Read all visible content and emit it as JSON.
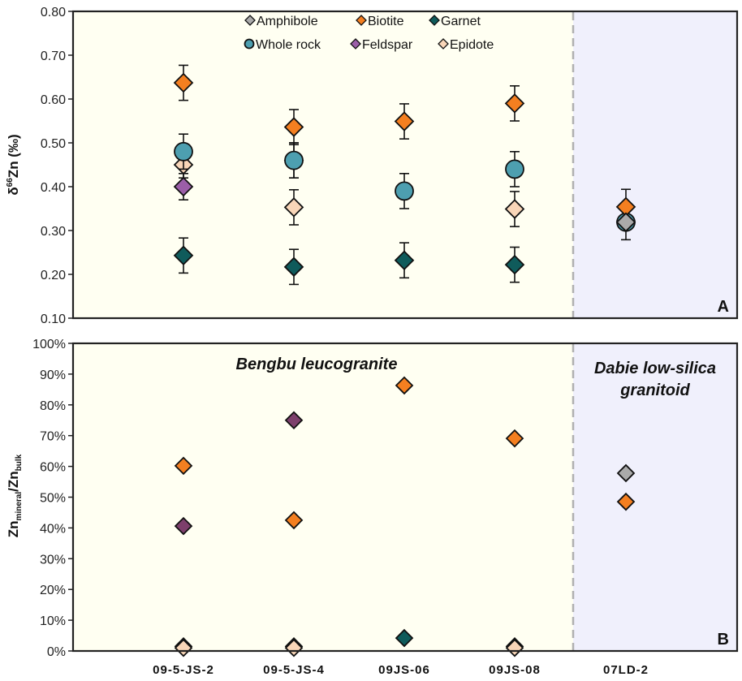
{
  "chart_data": [
    {
      "panel": "A",
      "type": "scatter",
      "title": "",
      "xlabel": "",
      "ylabel": "δ66Zn (‰)",
      "ylabel_parts": {
        "delta": "δ",
        "sup": "66",
        "main": "Zn (‰)"
      },
      "ylim": [
        0.1,
        0.8
      ],
      "yticks": [
        "0.10",
        "0.20",
        "0.30",
        "0.40",
        "0.50",
        "0.60",
        "0.70",
        "0.80"
      ],
      "ytick_values": [
        0.1,
        0.2,
        0.3,
        0.4,
        0.5,
        0.6,
        0.7,
        0.8
      ],
      "categories": [
        "09-5-JS-2",
        "09-5-JS-4",
        "09JS-06",
        "09JS-08",
        "07LD-2"
      ],
      "grid": false,
      "legend_position": "top-center",
      "series": [
        {
          "name": "Garnet",
          "marker": "diamond",
          "color": "#0f5b5b",
          "values": [
            0.243,
            0.217,
            0.232,
            0.222,
            null
          ],
          "errors": [
            0.04,
            0.04,
            0.04,
            0.04,
            null
          ]
        },
        {
          "name": "Epidote",
          "marker": "diamond",
          "color": "#f9d6b8",
          "values": [
            0.45,
            null,
            null,
            0.349,
            null
          ],
          "errors": [
            0.03,
            null,
            null,
            0.04,
            null
          ]
        },
        {
          "name": "Feldspar",
          "marker": "diamond",
          "color": "#9b5ea8",
          "values": [
            0.4,
            0.46,
            null,
            null,
            null
          ],
          "errors": [
            0.03,
            0.04,
            null,
            null,
            null
          ]
        },
        {
          "name": "Whole rock",
          "marker": "circle",
          "color": "#4d9fb0",
          "values": [
            0.48,
            0.46,
            0.39,
            0.44,
            0.319
          ],
          "errors": [
            0.04,
            0.04,
            0.04,
            0.04,
            0.04
          ]
        },
        {
          "name": "Epidote2",
          "marker": "diamond",
          "color": "#f9d6b8",
          "values": [
            null,
            0.353,
            null,
            null,
            null
          ],
          "errors": [
            null,
            0.04,
            null,
            null,
            null
          ]
        },
        {
          "name": "Biotite",
          "marker": "diamond",
          "color": "#f47f20",
          "values": [
            0.637,
            0.536,
            0.549,
            0.59,
            0.354
          ],
          "errors": [
            0.04,
            0.04,
            0.04,
            0.04,
            0.04
          ]
        },
        {
          "name": "Amphibole",
          "marker": "diamond",
          "color": "#aaaaaa",
          "values": [
            null,
            null,
            null,
            null,
            0.319
          ],
          "errors": [
            null,
            null,
            null,
            null,
            null
          ]
        }
      ],
      "legend": [
        {
          "name": "Amphibole",
          "marker": "diamond",
          "color": "#aaaaaa"
        },
        {
          "name": "Biotite",
          "marker": "diamond",
          "color": "#f47f20"
        },
        {
          "name": "Garnet",
          "marker": "diamond",
          "color": "#0f5b5b"
        },
        {
          "name": "Whole rock",
          "marker": "circle",
          "color": "#4d9fb0"
        },
        {
          "name": "Feldspar",
          "marker": "diamond",
          "color": "#9b5ea8"
        },
        {
          "name": "Epidote",
          "marker": "diamond",
          "color": "#f9d6b8"
        }
      ],
      "annotations": {
        "panel_letter": "A"
      }
    },
    {
      "panel": "B",
      "type": "scatter",
      "title": "",
      "xlabel": "",
      "ylabel": "Znmineral/Znbulk",
      "ylabel_parts": {
        "a": "Zn",
        "a_sub": "mineral",
        "sep": "/",
        "b": "Zn",
        "b_sub": "bulk"
      },
      "ylim": [
        0,
        100
      ],
      "yticks": [
        "0%",
        "10%",
        "20%",
        "30%",
        "40%",
        "50%",
        "60%",
        "70%",
        "80%",
        "90%",
        "100%"
      ],
      "ytick_values": [
        0,
        10,
        20,
        30,
        40,
        50,
        60,
        70,
        80,
        90,
        100
      ],
      "categories": [
        "09-5-JS-2",
        "09-5-JS-4",
        "09JS-06",
        "09JS-08",
        "07LD-2"
      ],
      "grid": false,
      "series": [
        {
          "name": "Garnet",
          "marker": "diamond",
          "color": "#0f5b5b",
          "values": [
            1.5,
            1.5,
            4.2,
            1.5,
            null
          ]
        },
        {
          "name": "Epidote",
          "marker": "diamond",
          "color": "#f9d6b8",
          "values": [
            1,
            1,
            null,
            1,
            null
          ]
        },
        {
          "name": "Feldspar",
          "marker": "diamond",
          "color": "#7d3f6c",
          "values": [
            40.6,
            75,
            null,
            null,
            null
          ]
        },
        {
          "name": "Biotite",
          "marker": "diamond",
          "color": "#f47f20",
          "values": [
            60.2,
            42.5,
            86.3,
            69.1,
            48.5
          ]
        },
        {
          "name": "Amphibole",
          "marker": "diamond",
          "color": "#aaaaaa",
          "values": [
            null,
            null,
            null,
            null,
            57.8
          ]
        }
      ],
      "annotations": {
        "panel_letter": "B",
        "group_left": "Bengbu leucogranite",
        "group_right_line1": "Dabie low-silica",
        "group_right_line2": "granitoid"
      }
    }
  ],
  "colors": {
    "bg_left": "#fffff2",
    "bg_right": "#f0f0fc",
    "divider": "#b0b0b0"
  }
}
